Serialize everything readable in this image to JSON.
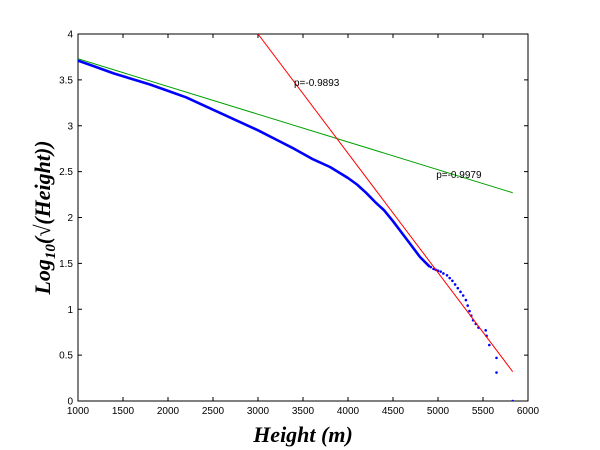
{
  "chart_data": {
    "type": "scatter",
    "xlabel": "Height (m)",
    "ylabel": {
      "prefix": "Log",
      "subscript": "10",
      "body": "(√(Height))"
    },
    "xlim": [
      1000,
      6000
    ],
    "ylim": [
      0,
      4
    ],
    "xticks": [
      1000,
      1500,
      2000,
      2500,
      3000,
      3500,
      4000,
      4500,
      5000,
      5500,
      6000
    ],
    "yticks": [
      0,
      0.5,
      1,
      1.5,
      2,
      2.5,
      3,
      3.5,
      4
    ],
    "grid": false,
    "series": [
      {
        "type": "dense-points",
        "color": "#0000ff",
        "points": [
          [
            1000,
            3.71
          ],
          [
            1200,
            3.64
          ],
          [
            1400,
            3.57
          ],
          [
            1600,
            3.51
          ],
          [
            1800,
            3.45
          ],
          [
            2000,
            3.38
          ],
          [
            2200,
            3.31
          ],
          [
            2400,
            3.22
          ],
          [
            2600,
            3.13
          ],
          [
            2800,
            3.04
          ],
          [
            3000,
            2.95
          ],
          [
            3200,
            2.85
          ],
          [
            3400,
            2.75
          ],
          [
            3600,
            2.64
          ],
          [
            3800,
            2.55
          ],
          [
            4000,
            2.43
          ],
          [
            4100,
            2.36
          ],
          [
            4200,
            2.27
          ],
          [
            4300,
            2.17
          ],
          [
            4400,
            2.08
          ],
          [
            4500,
            1.96
          ],
          [
            4600,
            1.83
          ],
          [
            4700,
            1.7
          ],
          [
            4800,
            1.57
          ],
          [
            4900,
            1.47
          ]
        ]
      },
      {
        "type": "sparse-points",
        "color": "#0000ff",
        "points": [
          [
            4920,
            1.46
          ],
          [
            4950,
            1.44
          ],
          [
            4975,
            1.43
          ],
          [
            5000,
            1.42
          ],
          [
            5030,
            1.41
          ],
          [
            5060,
            1.39
          ],
          [
            5100,
            1.37
          ],
          [
            5130,
            1.34
          ],
          [
            5160,
            1.31
          ],
          [
            5190,
            1.27
          ],
          [
            5220,
            1.23
          ],
          [
            5250,
            1.19
          ],
          [
            5280,
            1.15
          ],
          [
            5310,
            1.1
          ],
          [
            5330,
            1.04
          ],
          [
            5350,
            0.98
          ],
          [
            5370,
            0.93
          ],
          [
            5390,
            0.88
          ],
          [
            5420,
            0.84
          ],
          [
            5450,
            0.8
          ],
          [
            5530,
            0.77
          ],
          [
            5540,
            0.71
          ],
          [
            5570,
            0.61
          ],
          [
            5650,
            0.47
          ],
          [
            5650,
            0.31
          ],
          [
            5830,
            0.0
          ]
        ]
      },
      {
        "type": "line",
        "color": "#00a000",
        "points": [
          [
            1000,
            3.73
          ],
          [
            5830,
            2.27
          ]
        ]
      },
      {
        "type": "line",
        "color": "#ff0000",
        "points": [
          [
            3000,
            4.0
          ],
          [
            5830,
            0.32
          ]
        ]
      }
    ],
    "annotations": [
      {
        "text": "p=-0.9893",
        "x": 3400,
        "y": 3.47
      },
      {
        "text": "p=-0.9979",
        "x": 4980,
        "y": 2.47
      }
    ]
  }
}
